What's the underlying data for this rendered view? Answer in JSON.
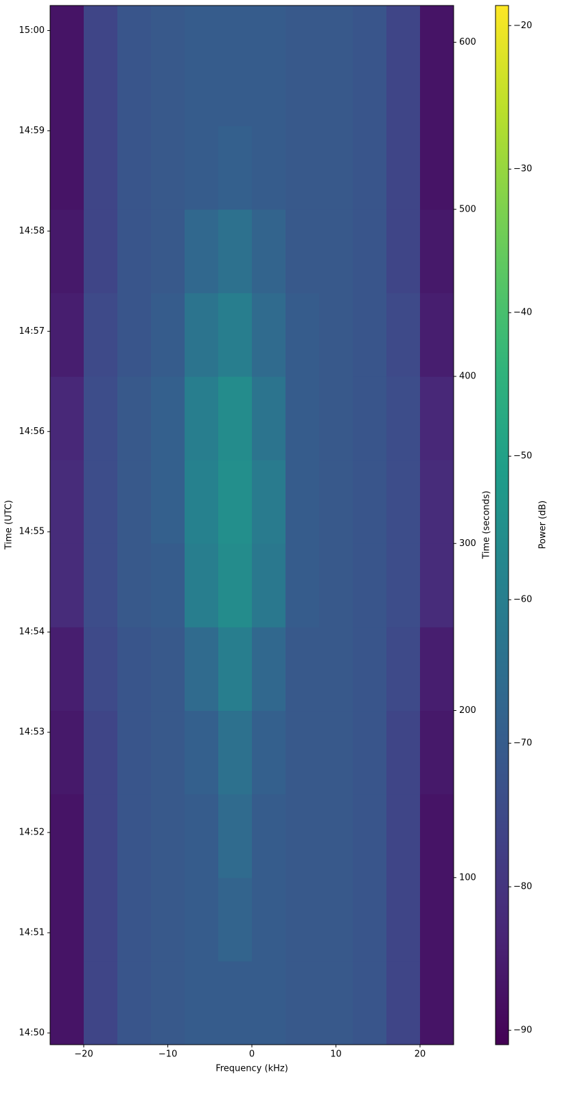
{
  "chart_data": {
    "type": "heatmap",
    "xlabel": "Frequency (kHz)",
    "ylabel": "Time (UTC)",
    "y2label": "Time (seconds)",
    "colorbar_label": "Power (dB)",
    "colormap": "viridis",
    "x_bins": [
      -24,
      -20,
      -16,
      -12,
      -8,
      -4,
      0,
      4,
      8,
      12,
      16,
      20,
      24
    ],
    "y_bins": [
      0,
      50,
      100,
      150,
      200,
      250,
      300,
      350,
      400,
      450,
      500,
      550,
      600,
      622
    ],
    "z": [
      [
        -87,
        -76,
        -72,
        -71,
        -70,
        -70,
        -70,
        -71,
        -71,
        -72,
        -76,
        -87
      ],
      [
        -87,
        -76,
        -72,
        -71,
        -70,
        -68,
        -70,
        -71,
        -71,
        -72,
        -76,
        -87
      ],
      [
        -87,
        -76,
        -72,
        -71,
        -70,
        -66,
        -70,
        -71,
        -71,
        -72,
        -76,
        -87
      ],
      [
        -86,
        -76,
        -72,
        -71,
        -69,
        -64,
        -69,
        -71,
        -71,
        -72,
        -76,
        -86
      ],
      [
        -85,
        -75,
        -72,
        -71,
        -66,
        -60,
        -67,
        -71,
        -71,
        -72,
        -75,
        -85
      ],
      [
        -82,
        -74,
        -71,
        -70,
        -60,
        -56,
        -62,
        -70,
        -71,
        -72,
        -74,
        -82
      ],
      [
        -82,
        -74,
        -71,
        -69,
        -59,
        -55,
        -61,
        -70,
        -71,
        -72,
        -74,
        -82
      ],
      [
        -83,
        -74,
        -71,
        -69,
        -60,
        -56,
        -63,
        -70,
        -71,
        -72,
        -74,
        -83
      ],
      [
        -85,
        -75,
        -72,
        -70,
        -63,
        -60,
        -66,
        -70,
        -71,
        -72,
        -75,
        -85
      ],
      [
        -86,
        -76,
        -72,
        -71,
        -67,
        -64,
        -68,
        -71,
        -71,
        -72,
        -76,
        -86
      ],
      [
        -87,
        -76,
        -72,
        -71,
        -70,
        -69,
        -70,
        -71,
        -71,
        -72,
        -76,
        -87
      ],
      [
        -87,
        -76,
        -72,
        -71,
        -70,
        -70,
        -70,
        -71,
        -71,
        -72,
        -76,
        -87
      ],
      [
        -87,
        -76,
        -72,
        -71,
        -70,
        -70,
        -70,
        -71,
        -71,
        -72,
        -76,
        -87
      ]
    ],
    "xlim": [
      -24,
      24
    ],
    "ylim": [
      0,
      622
    ],
    "clim": [
      -91,
      -18.6
    ],
    "xticks": [
      {
        "value": -20,
        "label": "−20"
      },
      {
        "value": -10,
        "label": "−10"
      },
      0,
      10,
      20
    ],
    "yticks": [
      {
        "value": 7,
        "label": "14:50"
      },
      {
        "value": 67,
        "label": "14:51"
      },
      {
        "value": 127,
        "label": "14:52"
      },
      {
        "value": 187,
        "label": "14:53"
      },
      {
        "value": 247,
        "label": "14:54"
      },
      {
        "value": 307,
        "label": "14:55"
      },
      {
        "value": 367,
        "label": "14:56"
      },
      {
        "value": 427,
        "label": "14:57"
      },
      {
        "value": 487,
        "label": "14:58"
      },
      {
        "value": 547,
        "label": "14:59"
      },
      {
        "value": 607,
        "label": "15:00"
      }
    ],
    "y2ticks": [
      100,
      200,
      300,
      400,
      500,
      600
    ],
    "cticks": [
      {
        "value": -90,
        "label": "−90"
      },
      {
        "value": -80,
        "label": "−80"
      },
      {
        "value": -70,
        "label": "−70"
      },
      {
        "value": -60,
        "label": "−60"
      },
      {
        "value": -50,
        "label": "−50"
      },
      {
        "value": -40,
        "label": "−40"
      },
      {
        "value": -30,
        "label": "−30"
      },
      {
        "value": -20,
        "label": "−20"
      }
    ]
  }
}
